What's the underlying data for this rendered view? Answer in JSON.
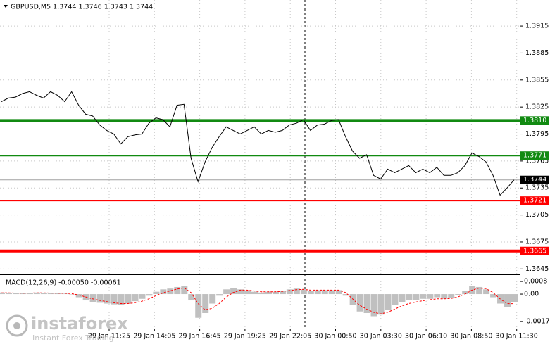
{
  "chart_data": {
    "type": "line",
    "title": "GBPUSD,M5  1.3744 1.3746 1.3743 1.3744",
    "series": [
      {
        "name": "GBPUSD",
        "color": "#000000",
        "values": [
          1.3831,
          1.3835,
          1.3836,
          1.384,
          1.3842,
          1.3838,
          1.3835,
          1.3842,
          1.3838,
          1.3831,
          1.3842,
          1.3827,
          1.3817,
          1.3815,
          1.3805,
          1.3799,
          1.3795,
          1.3784,
          1.3792,
          1.3794,
          1.3795,
          1.3807,
          1.3813,
          1.3811,
          1.3803,
          1.3827,
          1.3828,
          1.3768,
          1.3742,
          1.3764,
          1.378,
          1.3792,
          1.3803,
          1.3799,
          1.3795,
          1.3799,
          1.3803,
          1.3795,
          1.3799,
          1.3797,
          1.3799,
          1.3805,
          1.3807,
          1.3811,
          1.3799,
          1.3805,
          1.3806,
          1.381,
          1.3811,
          1.3792,
          1.3776,
          1.3768,
          1.3772,
          1.3749,
          1.3745,
          1.3756,
          1.3752,
          1.3756,
          1.376,
          1.3752,
          1.3756,
          1.3752,
          1.3758,
          1.3749,
          1.3749,
          1.3752,
          1.376,
          1.3774,
          1.377,
          1.3764,
          1.3749,
          1.3727,
          1.3735,
          1.3744
        ]
      }
    ],
    "ylim": [
      1.3639,
      1.3944
    ],
    "yticks": [
      1.3915,
      1.3885,
      1.3855,
      1.3825,
      1.3795,
      1.3765,
      1.3735,
      1.3705,
      1.3675,
      1.3645
    ],
    "grid": true,
    "x_labels": [
      "29 Jan 11:25",
      "29 Jan 14:05",
      "29 Jan 16:45",
      "29 Jan 19:25",
      "29 Jan 22:05",
      "30 Jan 00:50",
      "30 Jan 03:30",
      "30 Jan 06:10",
      "30 Jan 08:50",
      "30 Jan 11:30"
    ],
    "levels": [
      {
        "value": 1.381,
        "label": "1.3810",
        "color": "#118a11",
        "thick": true
      },
      {
        "value": 1.3771,
        "label": "1.3771",
        "color": "#118a11",
        "thick": false
      },
      {
        "value": 1.3744,
        "label": "1.3744",
        "color": "#000000",
        "thick": false
      },
      {
        "value": 1.3721,
        "label": "1.3721",
        "color": "#ff0000",
        "thick": false
      },
      {
        "value": 1.3665,
        "label": "1.3665",
        "color": "#ff0000",
        "thick": true
      }
    ],
    "macd": {
      "title": "MACD(12,26,9) -0.00050 -0.00061",
      "histogram_color": "#c0c0c0",
      "signal_color": "#ff0000",
      "histogram": [
        0.0001,
        8e-05,
        5e-05,
        5e-05,
        8e-05,
        0.0001,
        8e-05,
        5e-05,
        5e-05,
        3e-05,
        0,
        -0.0002,
        -0.0004,
        -0.0005,
        -0.00055,
        -0.0006,
        -0.00065,
        -0.0007,
        -0.0006,
        -0.00045,
        -0.0003,
        -0.0001,
        0.00015,
        0.0003,
        0.00035,
        0.00045,
        0.0005,
        -0.0004,
        -0.0015,
        -0.0012,
        -0.0006,
        -0.0001,
        0.0003,
        0.0004,
        0.0003,
        0.0002,
        0.00015,
        0.0001,
        0.00015,
        0.00015,
        0.0002,
        0.0003,
        0.00035,
        0.0003,
        0.0002,
        0.00025,
        0.00025,
        0.00025,
        0.00025,
        -0.0001,
        -0.0007,
        -0.0011,
        -0.0012,
        -0.0014,
        -0.0013,
        -0.001,
        -0.0007,
        -0.0005,
        -0.0004,
        -0.0004,
        -0.0003,
        -0.0003,
        -0.0002,
        -0.0003,
        -0.00025,
        -5e-05,
        0.0002,
        0.0005,
        0.00045,
        0.0003,
        -0.0002,
        -0.0006,
        -0.0008,
        -0.0005
      ],
      "signal": [
        8e-05,
        8e-05,
        7e-05,
        6e-05,
        7e-05,
        8e-05,
        8e-05,
        7e-05,
        6e-05,
        5e-05,
        3e-05,
        -5e-05,
        -0.00018,
        -0.0003,
        -0.0004,
        -0.00048,
        -0.00055,
        -0.0006,
        -0.0006,
        -0.00055,
        -0.00045,
        -0.0003,
        -0.0001,
        8e-05,
        0.0002,
        0.00032,
        0.0004,
        0.0001,
        -0.0006,
        -0.001,
        -0.0009,
        -0.0006,
        -0.0002,
        0.0001,
        0.00025,
        0.00025,
        0.0002,
        0.00015,
        0.00015,
        0.00015,
        0.00017,
        0.00022,
        0.00028,
        0.0003,
        0.00025,
        0.00025,
        0.00025,
        0.00025,
        0.00025,
        0.0001,
        -0.0003,
        -0.0007,
        -0.00095,
        -0.00115,
        -0.00125,
        -0.00115,
        -0.00095,
        -0.00075,
        -0.0006,
        -0.0005,
        -0.00042,
        -0.00036,
        -0.0003,
        -0.0003,
        -0.00028,
        -0.00018,
        0,
        0.00025,
        0.00038,
        0.00035,
        0.0001,
        -0.0003,
        -0.0006,
        -0.00061
      ],
      "ylim": [
        -0.00218,
        0.00116
      ],
      "yticks": [
        0.0008,
        {
          "value": 0,
          "label": "0.00"
        },
        -0.00174
      ]
    },
    "watermark": {
      "name": "instaforex",
      "tagline": "Instant Forex Trading"
    }
  }
}
